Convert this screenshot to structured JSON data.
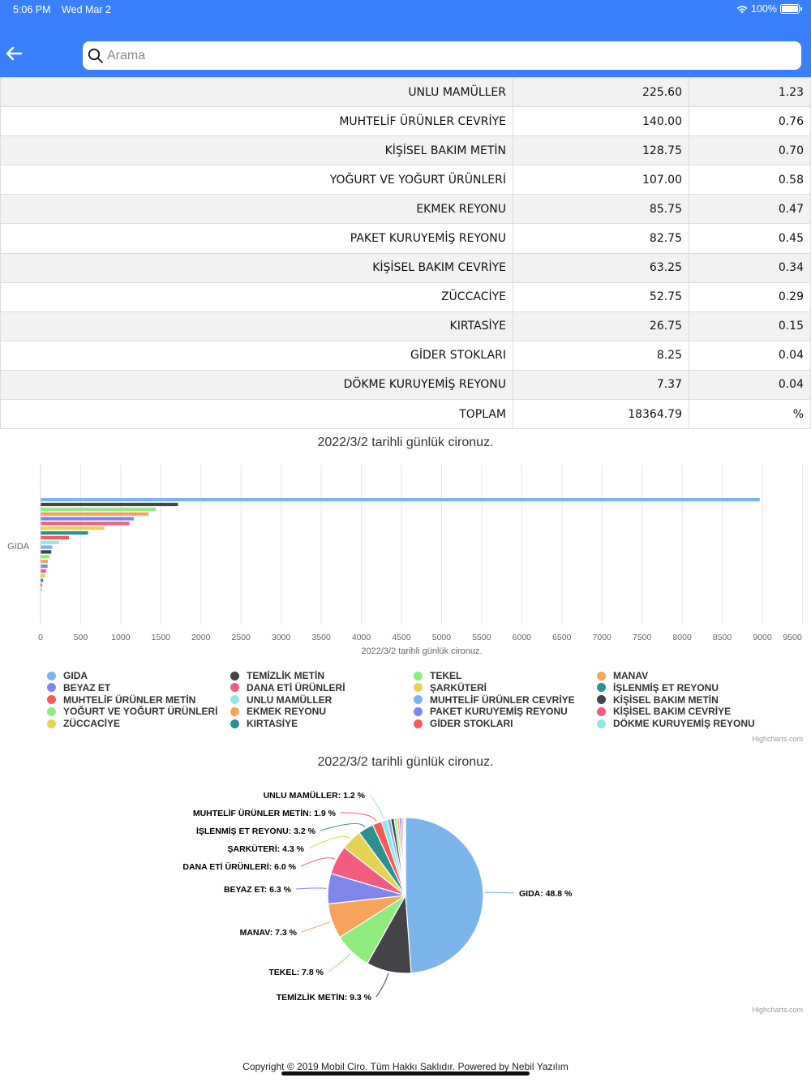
{
  "status_bar": {
    "time": "5:06 PM",
    "date": "Wed Mar 2",
    "battery": "100%"
  },
  "header": {
    "search_placeholder": "Arama",
    "search_value": ""
  },
  "table": {
    "rows": [
      {
        "name": "UNLU MAMÜLLER",
        "amount": "225.60",
        "percent": "1.23"
      },
      {
        "name": "MUHTELİF ÜRÜNLER CEVRİYE",
        "amount": "140.00",
        "percent": "0.76"
      },
      {
        "name": "KİŞİSEL BAKIM METİN",
        "amount": "128.75",
        "percent": "0.70"
      },
      {
        "name": "YOĞURT VE YOĞURT ÜRÜNLERİ",
        "amount": "107.00",
        "percent": "0.58"
      },
      {
        "name": "EKMEK REYONU",
        "amount": "85.75",
        "percent": "0.47"
      },
      {
        "name": "PAKET KURUYEMİŞ REYONU",
        "amount": "82.75",
        "percent": "0.45"
      },
      {
        "name": "KİŞİSEL BAKIM CEVRİYE",
        "amount": "63.25",
        "percent": "0.34"
      },
      {
        "name": "ZÜCCACİYE",
        "amount": "52.75",
        "percent": "0.29"
      },
      {
        "name": "KIRTASİYE",
        "amount": "26.75",
        "percent": "0.15"
      },
      {
        "name": "GİDER STOKLARI",
        "amount": "8.25",
        "percent": "0.04"
      },
      {
        "name": "DÖKME KURUYEMİŞ REYONU",
        "amount": "7.37",
        "percent": "0.04"
      },
      {
        "name": "TOPLAM",
        "amount": "18364.79",
        "percent": "%"
      }
    ]
  },
  "chart_data": [
    {
      "type": "bar",
      "orientation": "horizontal",
      "title": "2022/3/2 tarihli günlük cironuz.",
      "xlabel": "2022/3/2 tarihli günlük cironuz.",
      "category_label": "GIDA",
      "xlim": [
        0,
        9500
      ],
      "ticks": [
        "0",
        "500",
        "1000",
        "1500",
        "2000",
        "2500",
        "3000",
        "3500",
        "4000",
        "4500",
        "5000",
        "5500",
        "6000",
        "6500",
        "7000",
        "7500",
        "8000",
        "8500",
        "9000",
        "9500"
      ],
      "grid": true,
      "legend_position": "bottom",
      "credits": "Highcharts.com",
      "series": [
        {
          "name": "GIDA",
          "value": 8962,
          "color": "#7cb5ec"
        },
        {
          "name": "TEMİZLİK METİN",
          "value": 1708,
          "color": "#434348"
        },
        {
          "name": "TEKEL",
          "value": 1432,
          "color": "#90ed7d"
        },
        {
          "name": "MANAV",
          "value": 1341,
          "color": "#f7a35c"
        },
        {
          "name": "BEYAZ ET",
          "value": 1157,
          "color": "#8085e9"
        },
        {
          "name": "DANA ETİ ÜRÜNLERİ",
          "value": 1102,
          "color": "#f15c80"
        },
        {
          "name": "ŞARKÜTERİ",
          "value": 790,
          "color": "#e4d354"
        },
        {
          "name": "İŞLENMİŞ ET REYONU",
          "value": 588,
          "color": "#2b908f"
        },
        {
          "name": "MUHTELİF ÜRÜNLER METİN",
          "value": 349,
          "color": "#f45b5b"
        },
        {
          "name": "UNLU MAMÜLLER",
          "value": 225.6,
          "color": "#91e8e1"
        },
        {
          "name": "MUHTELİF ÜRÜNLER CEVRİYE",
          "value": 140.0,
          "color": "#7cb5ec"
        },
        {
          "name": "KİŞİSEL BAKIM METİN",
          "value": 128.75,
          "color": "#434348"
        },
        {
          "name": "YOĞURT VE YOĞURT ÜRÜNLERİ",
          "value": 107.0,
          "color": "#90ed7d"
        },
        {
          "name": "EKMEK REYONU",
          "value": 85.75,
          "color": "#f7a35c"
        },
        {
          "name": "PAKET KURUYEMİŞ REYONU",
          "value": 82.75,
          "color": "#8085e9"
        },
        {
          "name": "KİŞİSEL BAKIM CEVRİYE",
          "value": 63.25,
          "color": "#f15c80"
        },
        {
          "name": "ZÜCCACİYE",
          "value": 52.75,
          "color": "#e4d354"
        },
        {
          "name": "KIRTASİYE",
          "value": 26.75,
          "color": "#2b908f"
        },
        {
          "name": "GİDER STOKLARI",
          "value": 8.25,
          "color": "#f45b5b"
        },
        {
          "name": "DÖKME KURUYEMİŞ REYONU",
          "value": 7.37,
          "color": "#91e8e1"
        }
      ]
    },
    {
      "type": "pie",
      "title": "2022/3/2 tarihli günlük cironuz.",
      "credits": "Highcharts.com",
      "slices": [
        {
          "name": "GIDA",
          "percent": 48.8,
          "label": "GIDA: 48.8 %",
          "color": "#7cb5ec"
        },
        {
          "name": "TEMİZLİK METİN",
          "percent": 9.3,
          "label": "TEMİZLİK METİN: 9.3 %",
          "color": "#434348"
        },
        {
          "name": "TEKEL",
          "percent": 7.8,
          "label": "TEKEL: 7.8 %",
          "color": "#90ed7d"
        },
        {
          "name": "MANAV",
          "percent": 7.3,
          "label": "MANAV: 7.3 %",
          "color": "#f7a35c"
        },
        {
          "name": "BEYAZ ET",
          "percent": 6.3,
          "label": "BEYAZ ET: 6.3 %",
          "color": "#8085e9"
        },
        {
          "name": "DANA ETİ ÜRÜNLERİ",
          "percent": 6.0,
          "label": "DANA ETİ ÜRÜNLERİ: 6.0 %",
          "color": "#f15c80"
        },
        {
          "name": "ŞARKÜTERİ",
          "percent": 4.3,
          "label": "ŞARKÜTERİ: 4.3 %",
          "color": "#e4d354"
        },
        {
          "name": "İŞLENMİŞ ET REYONU",
          "percent": 3.2,
          "label": "İŞLENMİŞ ET REYONU: 3.2 %",
          "color": "#2b908f"
        },
        {
          "name": "MUHTELİF ÜRÜNLER METİN",
          "percent": 1.9,
          "label": "MUHTELİF ÜRÜNLER METİN: 1.9 %",
          "color": "#f45b5b"
        },
        {
          "name": "UNLU MAMÜLLER",
          "percent": 1.2,
          "label": "UNLU MAMÜLLER: 1.2 %",
          "color": "#91e8e1"
        },
        {
          "name": "MUHTELİF ÜRÜNLER CEVRİYE",
          "percent": 0.76,
          "label": "",
          "color": "#7cb5ec"
        },
        {
          "name": "KİŞİSEL BAKIM METİN",
          "percent": 0.7,
          "label": "",
          "color": "#434348"
        },
        {
          "name": "YOĞURT VE YOĞURT ÜRÜNLERİ",
          "percent": 0.58,
          "label": "",
          "color": "#90ed7d"
        },
        {
          "name": "EKMEK REYONU",
          "percent": 0.47,
          "label": "",
          "color": "#f7a35c"
        },
        {
          "name": "PAKET KURUYEMİŞ REYONU",
          "percent": 0.45,
          "label": "",
          "color": "#8085e9"
        },
        {
          "name": "KİŞİSEL BAKIM CEVRİYE",
          "percent": 0.34,
          "label": "",
          "color": "#f15c80"
        },
        {
          "name": "ZÜCCACİYE",
          "percent": 0.29,
          "label": "",
          "color": "#e4d354"
        },
        {
          "name": "KIRTASİYE",
          "percent": 0.15,
          "label": "",
          "color": "#2b908f"
        },
        {
          "name": "GİDER STOKLARI",
          "percent": 0.04,
          "label": "",
          "color": "#f45b5b"
        },
        {
          "name": "DÖKME KURUYEMİŞ REYONU",
          "percent": 0.04,
          "label": "",
          "color": "#91e8e1"
        }
      ]
    }
  ],
  "footer": {
    "copyright": "Copyright © 2019 Mobil Ciro. Tüm Hakkı Saklıdır. Powered by Nebil Yazılım"
  }
}
